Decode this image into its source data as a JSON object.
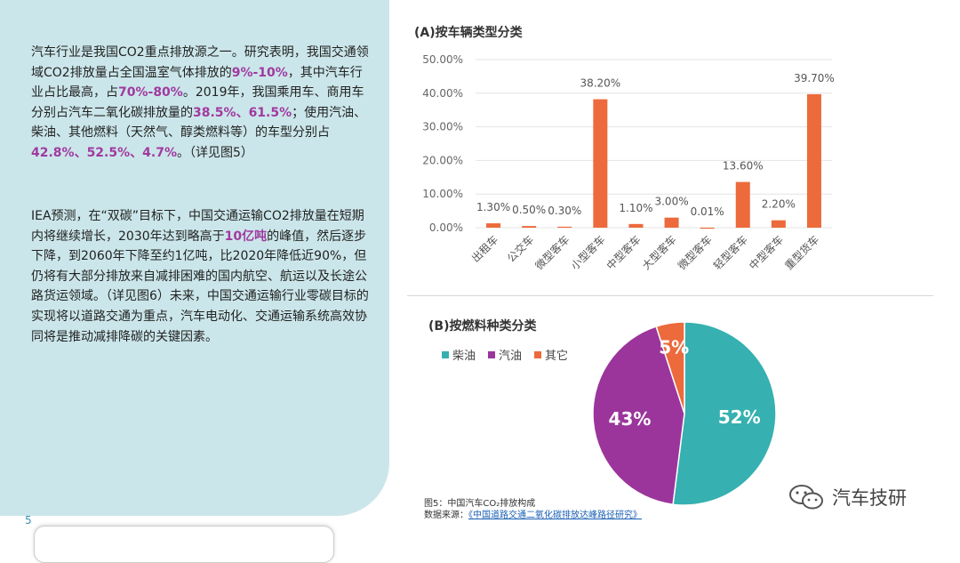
{
  "left_text": {
    "p1": [
      {
        "t": "汽车行业是我国CO2重点排放源之一。研究表明，我国交通领域CO2排放量占全国温室气体排放的"
      },
      {
        "t": "9%-10%",
        "hl": true
      },
      {
        "t": "，其中汽车行业占比最高，占"
      },
      {
        "t": "70%-80%",
        "hl": true
      },
      {
        "t": "。2019年，我国乘用车、商用车分别占汽车二氧化碳排放量的"
      },
      {
        "t": "38.5%、61.5%",
        "hl": true
      },
      {
        "t": "；使用汽油、柴油、其他燃料（天然气、醇类燃料等）的车型分别占"
      },
      {
        "t": "42.8%、52.5%、4.7%",
        "hl": true
      },
      {
        "t": "。（详见图5）"
      }
    ],
    "p2": [
      {
        "t": "IEA预测，在“双碳”目标下，中国交通运输CO2排放量在短期内将继续增长，2030年达到略高于"
      },
      {
        "t": "10亿吨",
        "hl": true
      },
      {
        "t": "的峰值，然后逐步下降，到2060年下降至约1亿吨，比2020年降低近90%，但仍将有大部分排放来自减排困难的国内航空、航运以及长途公路货运领域。（详见图6）未来，中国交通运输行业零碳目标的实现将以道路交通为重点，汽车电动化、交通运输系统高效协同将是推动减排降碳的关键因素。"
      }
    ]
  },
  "page_number": "5",
  "chart_a_title": "(A)按车辆类型分类",
  "chart_b_title": "(B)按燃料种类分类",
  "caption": {
    "line1": "图5：中国汽车CO₂排放构成",
    "line2_label": "数据来源：",
    "line2_source": "《中国道路交通二氧化碳排放达峰路径研究》"
  },
  "brand": "汽车技研",
  "colors": {
    "bar": "#ec6a3c",
    "diesel": "#36b0b0",
    "gasoline": "#9b359b",
    "other": "#ec6a3c",
    "highlight": "#a03aa0"
  },
  "chart_data": [
    {
      "type": "bar",
      "title": "(A)按车辆类型分类",
      "categories": [
        "出租车",
        "公交车",
        "微型客车",
        "小型客车",
        "中型客车",
        "大型客车",
        "微型客车",
        "轻型客车",
        "中型客车",
        "重型货车"
      ],
      "values": [
        1.3,
        0.5,
        0.3,
        38.2,
        1.1,
        3.0,
        0.01,
        13.6,
        2.2,
        39.7
      ],
      "labels": [
        "1.30%",
        "0.50%",
        "0.30%",
        "38.20%",
        "1.10%",
        "3.00%",
        "0.01%",
        "13.60%",
        "2.20%",
        "39.70%"
      ],
      "y_ticks": [
        "0.00%",
        "10.00%",
        "20.00%",
        "30.00%",
        "40.00%",
        "50.00%"
      ],
      "ylim": [
        0,
        50
      ],
      "grid": true
    },
    {
      "type": "pie",
      "title": "(B)按燃料种类分类",
      "legend": [
        "柴油",
        "汽油",
        "其它"
      ],
      "legend_position": "top-left",
      "values": [
        52,
        43,
        5
      ],
      "labels": [
        "52%",
        "43%",
        "5%"
      ]
    }
  ]
}
